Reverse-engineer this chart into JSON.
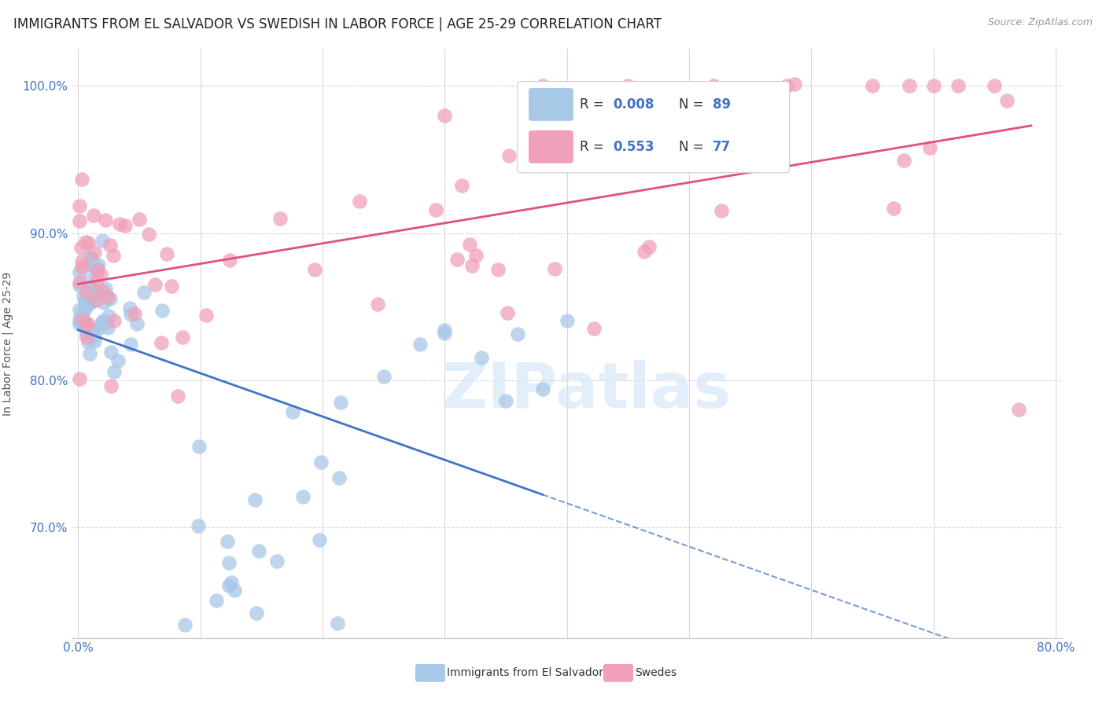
{
  "title": "IMMIGRANTS FROM EL SALVADOR VS SWEDISH IN LABOR FORCE | AGE 25-29 CORRELATION CHART",
  "source": "Source: ZipAtlas.com",
  "ylabel": "In Labor Force | Age 25-29",
  "color_salvador": "#a8c8e8",
  "color_swedes": "#f0a0b8",
  "color_line_salvador": "#4472c4",
  "color_line_swedes": "#e05080",
  "watermark_text": "ZIPatlas",
  "xmin": 0.0,
  "xmax": 0.8,
  "ymin": 0.625,
  "ymax": 1.025,
  "ytick_vals": [
    0.7,
    0.8,
    0.9,
    1.0
  ],
  "ytick_labels": [
    "70.0%",
    "80.0%",
    "90.0%",
    "100.0%"
  ],
  "legend_label_salvador": "Immigrants from El Salvador",
  "legend_label_swedes": "Swedes"
}
